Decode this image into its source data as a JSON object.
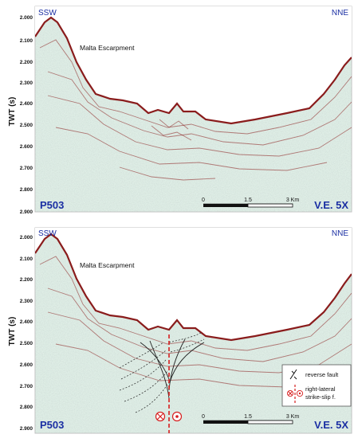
{
  "panels": [
    {
      "id": "top",
      "orientation": {
        "left": "SSW",
        "right": "NNE"
      },
      "feature_label": "Malta Escarpment",
      "y_axis_label": "TWT (s)",
      "y_ticks": [
        "2.000",
        "2.100",
        "2.200",
        "2.300",
        "2.400",
        "2.500",
        "2.600",
        "2.700",
        "2.800",
        "2.900"
      ],
      "profile_id": "P503",
      "vertical_exaggeration": "V.E. 5X",
      "scale_labels": {
        "start": "0",
        "mid": "1.5",
        "end": "3 Km"
      }
    },
    {
      "id": "bottom",
      "orientation": {
        "left": "SSW",
        "right": "NNE"
      },
      "feature_label": "Malta Escarpment",
      "y_axis_label": "TWT (s)",
      "y_ticks": [
        "2.000",
        "2.100",
        "2.200",
        "2.300",
        "2.400",
        "2.500",
        "2.600",
        "2.700",
        "2.800",
        "2.900"
      ],
      "profile_id": "P503",
      "vertical_exaggeration": "V.E. 5X",
      "scale_labels": {
        "start": "0",
        "mid": "1.5",
        "end": "3 Km"
      },
      "legend": {
        "reverse_fault": "reverse fault",
        "strike_slip_line1": "right-lateral",
        "strike_slip_line2": "strike-slip f."
      }
    }
  ],
  "colors": {
    "section_background": "#dfeee6",
    "reflector": "#8a1c1c",
    "label_blue": "#1b2fa3",
    "fault_dashed": "#d61f1f",
    "axis_text": "#111111"
  }
}
